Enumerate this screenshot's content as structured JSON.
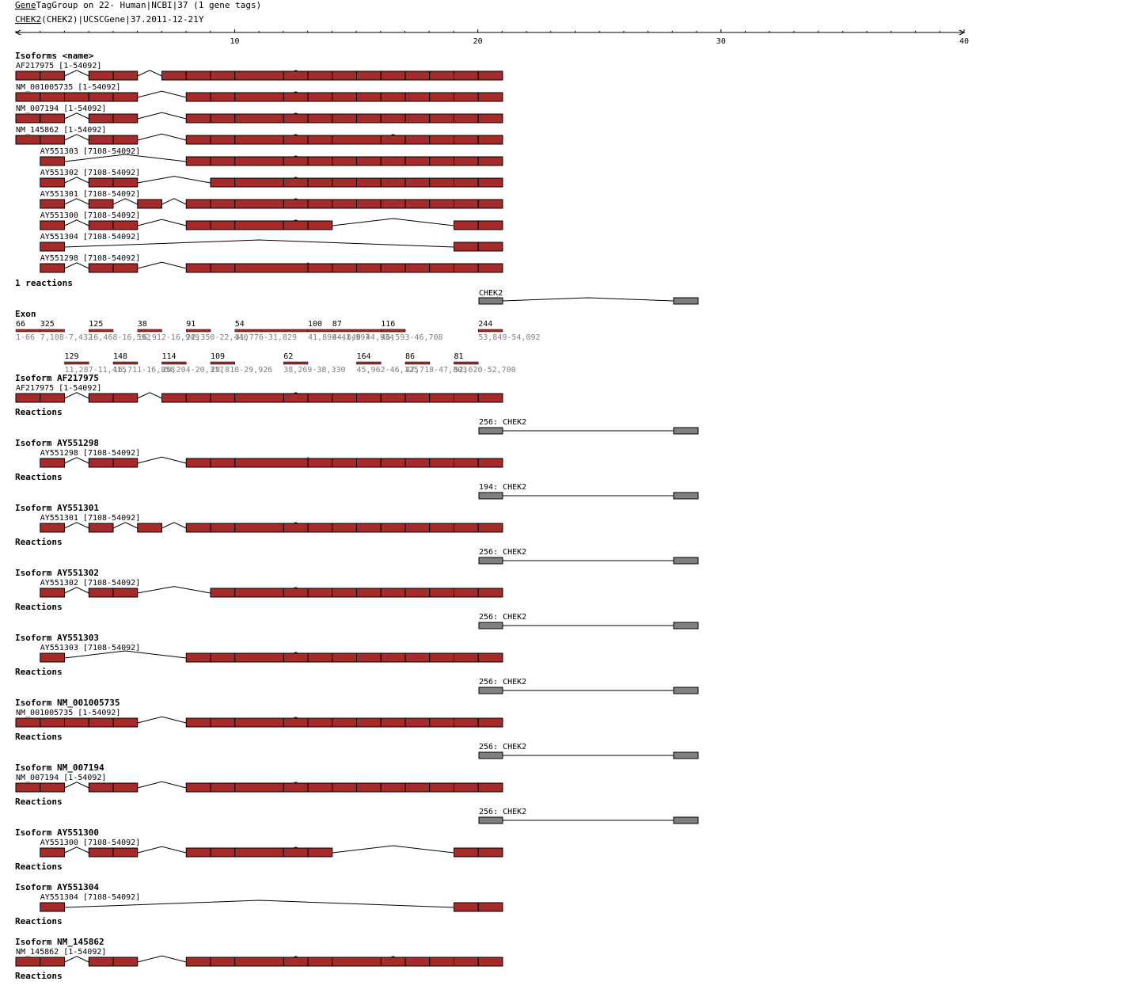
{
  "header": {
    "title_prefix": "Gene",
    "title_rest": "TagGroup on 22- Human|NCBI|37 (1 gene tags)",
    "subtitle_gene": "CHEK2",
    "subtitle_rest": "(CHEK2)|UCSCGene|37.2011-12-21",
    "subtitle_mark": "Y"
  },
  "colors": {
    "exon": "#a52a2a",
    "reaction": "#808080",
    "line": "#000000",
    "muted": "#808080"
  },
  "axis": {
    "ticks": [
      "10",
      "20",
      "30",
      "40"
    ]
  },
  "isoforms_overview": {
    "heading": "Isoforms <name>",
    "tracks": [
      {
        "label": "AF217975 [1-54092]",
        "start": 0,
        "exons": [
          0,
          1,
          3,
          4,
          6,
          7,
          8,
          9,
          11,
          12,
          13,
          14,
          15,
          16,
          17,
          18,
          19
        ]
      },
      {
        "label": "NM_001005735 [1-54092]",
        "start": 0,
        "exons": [
          0,
          1,
          2,
          3,
          4,
          7,
          8,
          9,
          11,
          12,
          13,
          14,
          15,
          16,
          17,
          18,
          19
        ]
      },
      {
        "label": "NM_007194 [1-54092]",
        "start": 0,
        "exons": [
          0,
          1,
          3,
          4,
          7,
          8,
          9,
          11,
          12,
          13,
          14,
          15,
          16,
          17,
          18,
          19
        ]
      },
      {
        "label": "NM_145862 [1-54092]",
        "start": 0,
        "exons": [
          0,
          1,
          3,
          4,
          7,
          8,
          9,
          11,
          12,
          13,
          15,
          16,
          17,
          18,
          19
        ]
      },
      {
        "label": "AY551303 [7108-54092]",
        "start": 1,
        "exons": [
          1,
          7,
          8,
          9,
          11,
          12,
          13,
          14,
          15,
          16,
          17,
          18,
          19
        ]
      },
      {
        "label": "AY551302 [7108-54092]",
        "start": 1,
        "exons": [
          1,
          3,
          4,
          8,
          9,
          11,
          12,
          13,
          14,
          15,
          16,
          17,
          18,
          19
        ]
      },
      {
        "label": "AY551301 [7108-54092]",
        "start": 1,
        "exons": [
          1,
          3,
          5,
          7,
          8,
          9,
          11,
          12,
          13,
          14,
          15,
          16,
          17,
          18,
          19
        ]
      },
      {
        "label": "AY551300 [7108-54092]",
        "start": 1,
        "exons": [
          1,
          3,
          4,
          7,
          8,
          9,
          11,
          12,
          18,
          19
        ]
      },
      {
        "label": "AY551304 [7108-54092]",
        "start": 1,
        "exons": [
          1,
          18,
          19
        ]
      },
      {
        "label": "AY551298 [7108-54092]",
        "start": 1,
        "exons": [
          1,
          3,
          4,
          7,
          8,
          9,
          12,
          13,
          14,
          15,
          16,
          17,
          18,
          19
        ]
      }
    ]
  },
  "reactions_overview": {
    "heading": "1 reactions",
    "label": "CHEK2"
  },
  "exon_table": {
    "heading": "Exon",
    "exons": [
      {
        "length": "66",
        "range": "1-66"
      },
      {
        "length": "325",
        "range": "7,108-7,432"
      },
      {
        "length": "129",
        "range": "11,287-11,415"
      },
      {
        "length": "125",
        "range": "16,468-16,592"
      },
      {
        "length": "148",
        "range": "16,711-16,858"
      },
      {
        "length": "38",
        "range": "16,912-16,949"
      },
      {
        "length": "114",
        "range": "20,204-20,317"
      },
      {
        "length": "91",
        "range": "22,350-22,440"
      },
      {
        "length": "109",
        "range": "29,818-29,926"
      },
      {
        "length": "54",
        "range": "31,776-31,829"
      },
      {
        "length": "62",
        "range": "38,269-38,330"
      },
      {
        "length": "100",
        "range": "41,898-41,997"
      },
      {
        "length": "87",
        "range": "44,848-44,934"
      },
      {
        "length": "164",
        "range": "45,962-46,125"
      },
      {
        "length": "116",
        "range": "46,593-46,708"
      },
      {
        "length": "86",
        "range": "47,718-47,803"
      },
      {
        "length": "81",
        "range": "52,620-52,700"
      },
      {
        "length": "244",
        "range": "53,849-54,092"
      }
    ]
  },
  "isoform_details": [
    {
      "title": "Isoform AF217975",
      "track": "AF217975 [1-54092]",
      "start": 0,
      "exons": [
        0,
        1,
        3,
        4,
        6,
        7,
        8,
        9,
        11,
        12,
        13,
        14,
        15,
        16,
        17,
        18,
        19
      ],
      "reactions_label": "Reactions",
      "reaction": "256: CHEK2"
    },
    {
      "title": "Isoform AY551298",
      "track": "AY551298 [7108-54092]",
      "start": 1,
      "exons": [
        1,
        3,
        4,
        7,
        8,
        9,
        12,
        13,
        14,
        15,
        16,
        17,
        18,
        19
      ],
      "reactions_label": "Reactions",
      "reaction": "194: CHEK2"
    },
    {
      "title": "Isoform AY551301",
      "track": "AY551301 [7108-54092]",
      "start": 1,
      "exons": [
        1,
        3,
        5,
        7,
        8,
        9,
        11,
        12,
        13,
        14,
        15,
        16,
        17,
        18,
        19
      ],
      "reactions_label": "Reactions",
      "reaction": "256: CHEK2"
    },
    {
      "title": "Isoform AY551302",
      "track": "AY551302 [7108-54092]",
      "start": 1,
      "exons": [
        1,
        3,
        4,
        8,
        9,
        11,
        12,
        13,
        14,
        15,
        16,
        17,
        18,
        19
      ],
      "reactions_label": "Reactions",
      "reaction": "256: CHEK2"
    },
    {
      "title": "Isoform AY551303",
      "track": "AY551303 [7108-54092]",
      "start": 1,
      "exons": [
        1,
        7,
        8,
        9,
        11,
        12,
        13,
        14,
        15,
        16,
        17,
        18,
        19
      ],
      "reactions_label": "Reactions",
      "reaction": "256: CHEK2"
    },
    {
      "title": "Isoform NM_001005735",
      "track": "NM_001005735 [1-54092]",
      "start": 0,
      "exons": [
        0,
        1,
        2,
        3,
        4,
        7,
        8,
        9,
        11,
        12,
        13,
        14,
        15,
        16,
        17,
        18,
        19
      ],
      "reactions_label": "Reactions",
      "reaction": "256: CHEK2"
    },
    {
      "title": "Isoform NM_007194",
      "track": "NM_007194 [1-54092]",
      "start": 0,
      "exons": [
        0,
        1,
        3,
        4,
        7,
        8,
        9,
        11,
        12,
        13,
        14,
        15,
        16,
        17,
        18,
        19
      ],
      "reactions_label": "Reactions",
      "reaction": "256: CHEK2"
    },
    {
      "title": "Isoform AY551300",
      "track": "AY551300 [7108-54092]",
      "start": 1,
      "exons": [
        1,
        3,
        4,
        7,
        8,
        9,
        11,
        12,
        18,
        19
      ],
      "reactions_label": "Reactions",
      "reaction": ""
    },
    {
      "title": "Isoform AY551304",
      "track": "AY551304 [7108-54092]",
      "start": 1,
      "exons": [
        1,
        18,
        19
      ],
      "reactions_label": "Reactions",
      "reaction": ""
    },
    {
      "title": "Isoform NM_145862",
      "track": "NM_145862 [1-54092]",
      "start": 0,
      "exons": [
        0,
        1,
        3,
        4,
        7,
        8,
        9,
        11,
        12,
        13,
        15,
        16,
        17,
        18,
        19
      ],
      "reactions_label": "Reactions",
      "reaction": ""
    }
  ]
}
